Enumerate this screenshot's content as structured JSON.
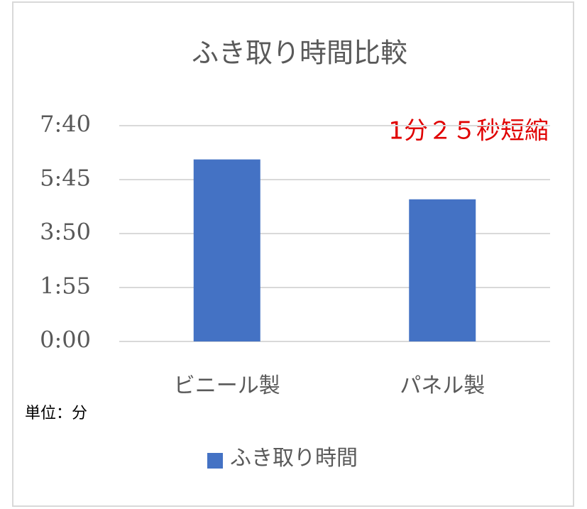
{
  "chart_data": {
    "type": "bar",
    "title": "ふき取り時間比較",
    "categories": [
      "ビニール製",
      "パネル製"
    ],
    "series": [
      {
        "name": "ふき取り時間",
        "color": "#4472c4",
        "values": [
          388,
          303
        ]
      }
    ],
    "ylim": [
      0,
      460
    ],
    "yticks": [
      {
        "value": 0,
        "label": "0:00"
      },
      {
        "value": 115,
        "label": "1:55"
      },
      {
        "value": 230,
        "label": "3:50"
      },
      {
        "value": 345,
        "label": "5:45"
      },
      {
        "value": 460,
        "label": "7:40"
      }
    ],
    "grid": true,
    "annotation": "1分２５秒短縮",
    "unit_note": "単位：分"
  }
}
